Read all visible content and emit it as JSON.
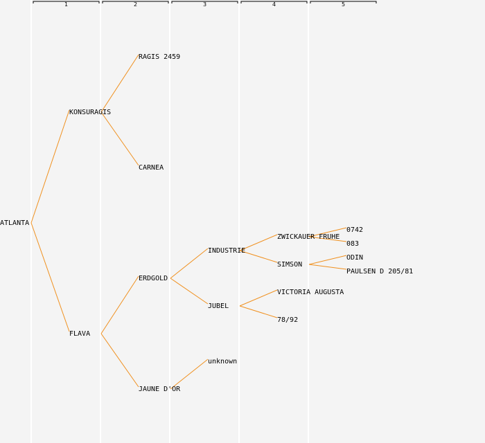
{
  "generations": [
    "1",
    "2",
    "3",
    "4",
    "5"
  ],
  "nodes": [
    {
      "id": "atlanta",
      "label": "ATLANTA",
      "gen": 0
    },
    {
      "id": "konsuragis",
      "label": "KONSURAGIS",
      "gen": 1,
      "parent": "atlanta"
    },
    {
      "id": "flava",
      "label": "FLAVA",
      "gen": 1,
      "parent": "atlanta"
    },
    {
      "id": "ragis2459",
      "label": "RAGIS 2459",
      "gen": 2,
      "parent": "konsuragis"
    },
    {
      "id": "carnea",
      "label": "CARNEA",
      "gen": 2,
      "parent": "konsuragis"
    },
    {
      "id": "erdgold",
      "label": "ERDGOLD",
      "gen": 2,
      "parent": "flava"
    },
    {
      "id": "jaunedor",
      "label": "JAUNE D'OR",
      "gen": 2,
      "parent": "flava"
    },
    {
      "id": "industrie",
      "label": "INDUSTRIE",
      "gen": 3,
      "parent": "erdgold"
    },
    {
      "id": "jubel",
      "label": "JUBEL",
      "gen": 3,
      "parent": "erdgold"
    },
    {
      "id": "unknown",
      "label": "unknown",
      "gen": 3,
      "parent": "jaunedor"
    },
    {
      "id": "zwickauer",
      "label": "ZWICKAUER FRUHE",
      "gen": 4,
      "parent": "industrie"
    },
    {
      "id": "simson",
      "label": "SIMSON",
      "gen": 4,
      "parent": "industrie"
    },
    {
      "id": "victoria",
      "label": "VICTORIA AUGUSTA",
      "gen": 4,
      "parent": "jubel"
    },
    {
      "id": "n7892",
      "label": "78/92",
      "gen": 4,
      "parent": "jubel"
    },
    {
      "id": "n0742",
      "label": "0742",
      "gen": 5,
      "parent": "zwickauer"
    },
    {
      "id": "n083",
      "label": "083",
      "gen": 5,
      "parent": "zwickauer"
    },
    {
      "id": "odin",
      "label": "ODIN",
      "gen": 5,
      "parent": "simson"
    },
    {
      "id": "paulsen",
      "label": "PAULSEN D 205/81",
      "gen": 5,
      "parent": "simson"
    }
  ]
}
